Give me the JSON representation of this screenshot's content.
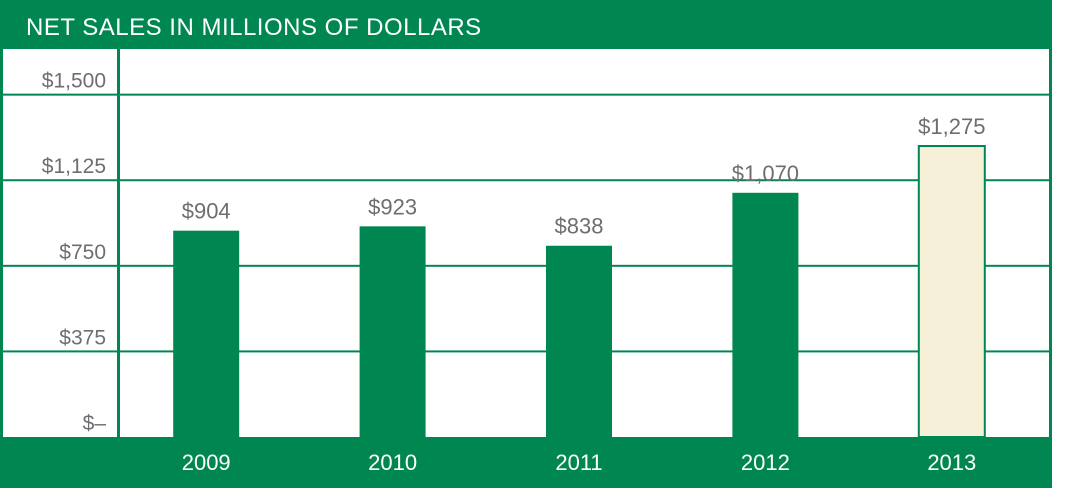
{
  "colors": {
    "brand_green": "#008751",
    "highlight_fill": "#f7f0d8",
    "label_gray": "#6d6e71",
    "background": "#ffffff"
  },
  "chart_data": {
    "type": "bar",
    "title": "NET SALES IN MILLIONS OF DOLLARS",
    "categories": [
      "2009",
      "2010",
      "2011",
      "2012",
      "2013"
    ],
    "values": [
      904,
      923,
      838,
      1070,
      1275
    ],
    "data_labels": [
      "$904",
      "$923",
      "$838",
      "$1,070",
      "$1,275"
    ],
    "highlight_category": "2013",
    "ylim": [
      0,
      1700
    ],
    "yticks": [
      0,
      375,
      750,
      1125,
      1500
    ],
    "ytick_labels": [
      "$–",
      "$375",
      "$750",
      "$1,125",
      "$1,500"
    ],
    "grid": true,
    "xlabel": "",
    "ylabel": ""
  }
}
